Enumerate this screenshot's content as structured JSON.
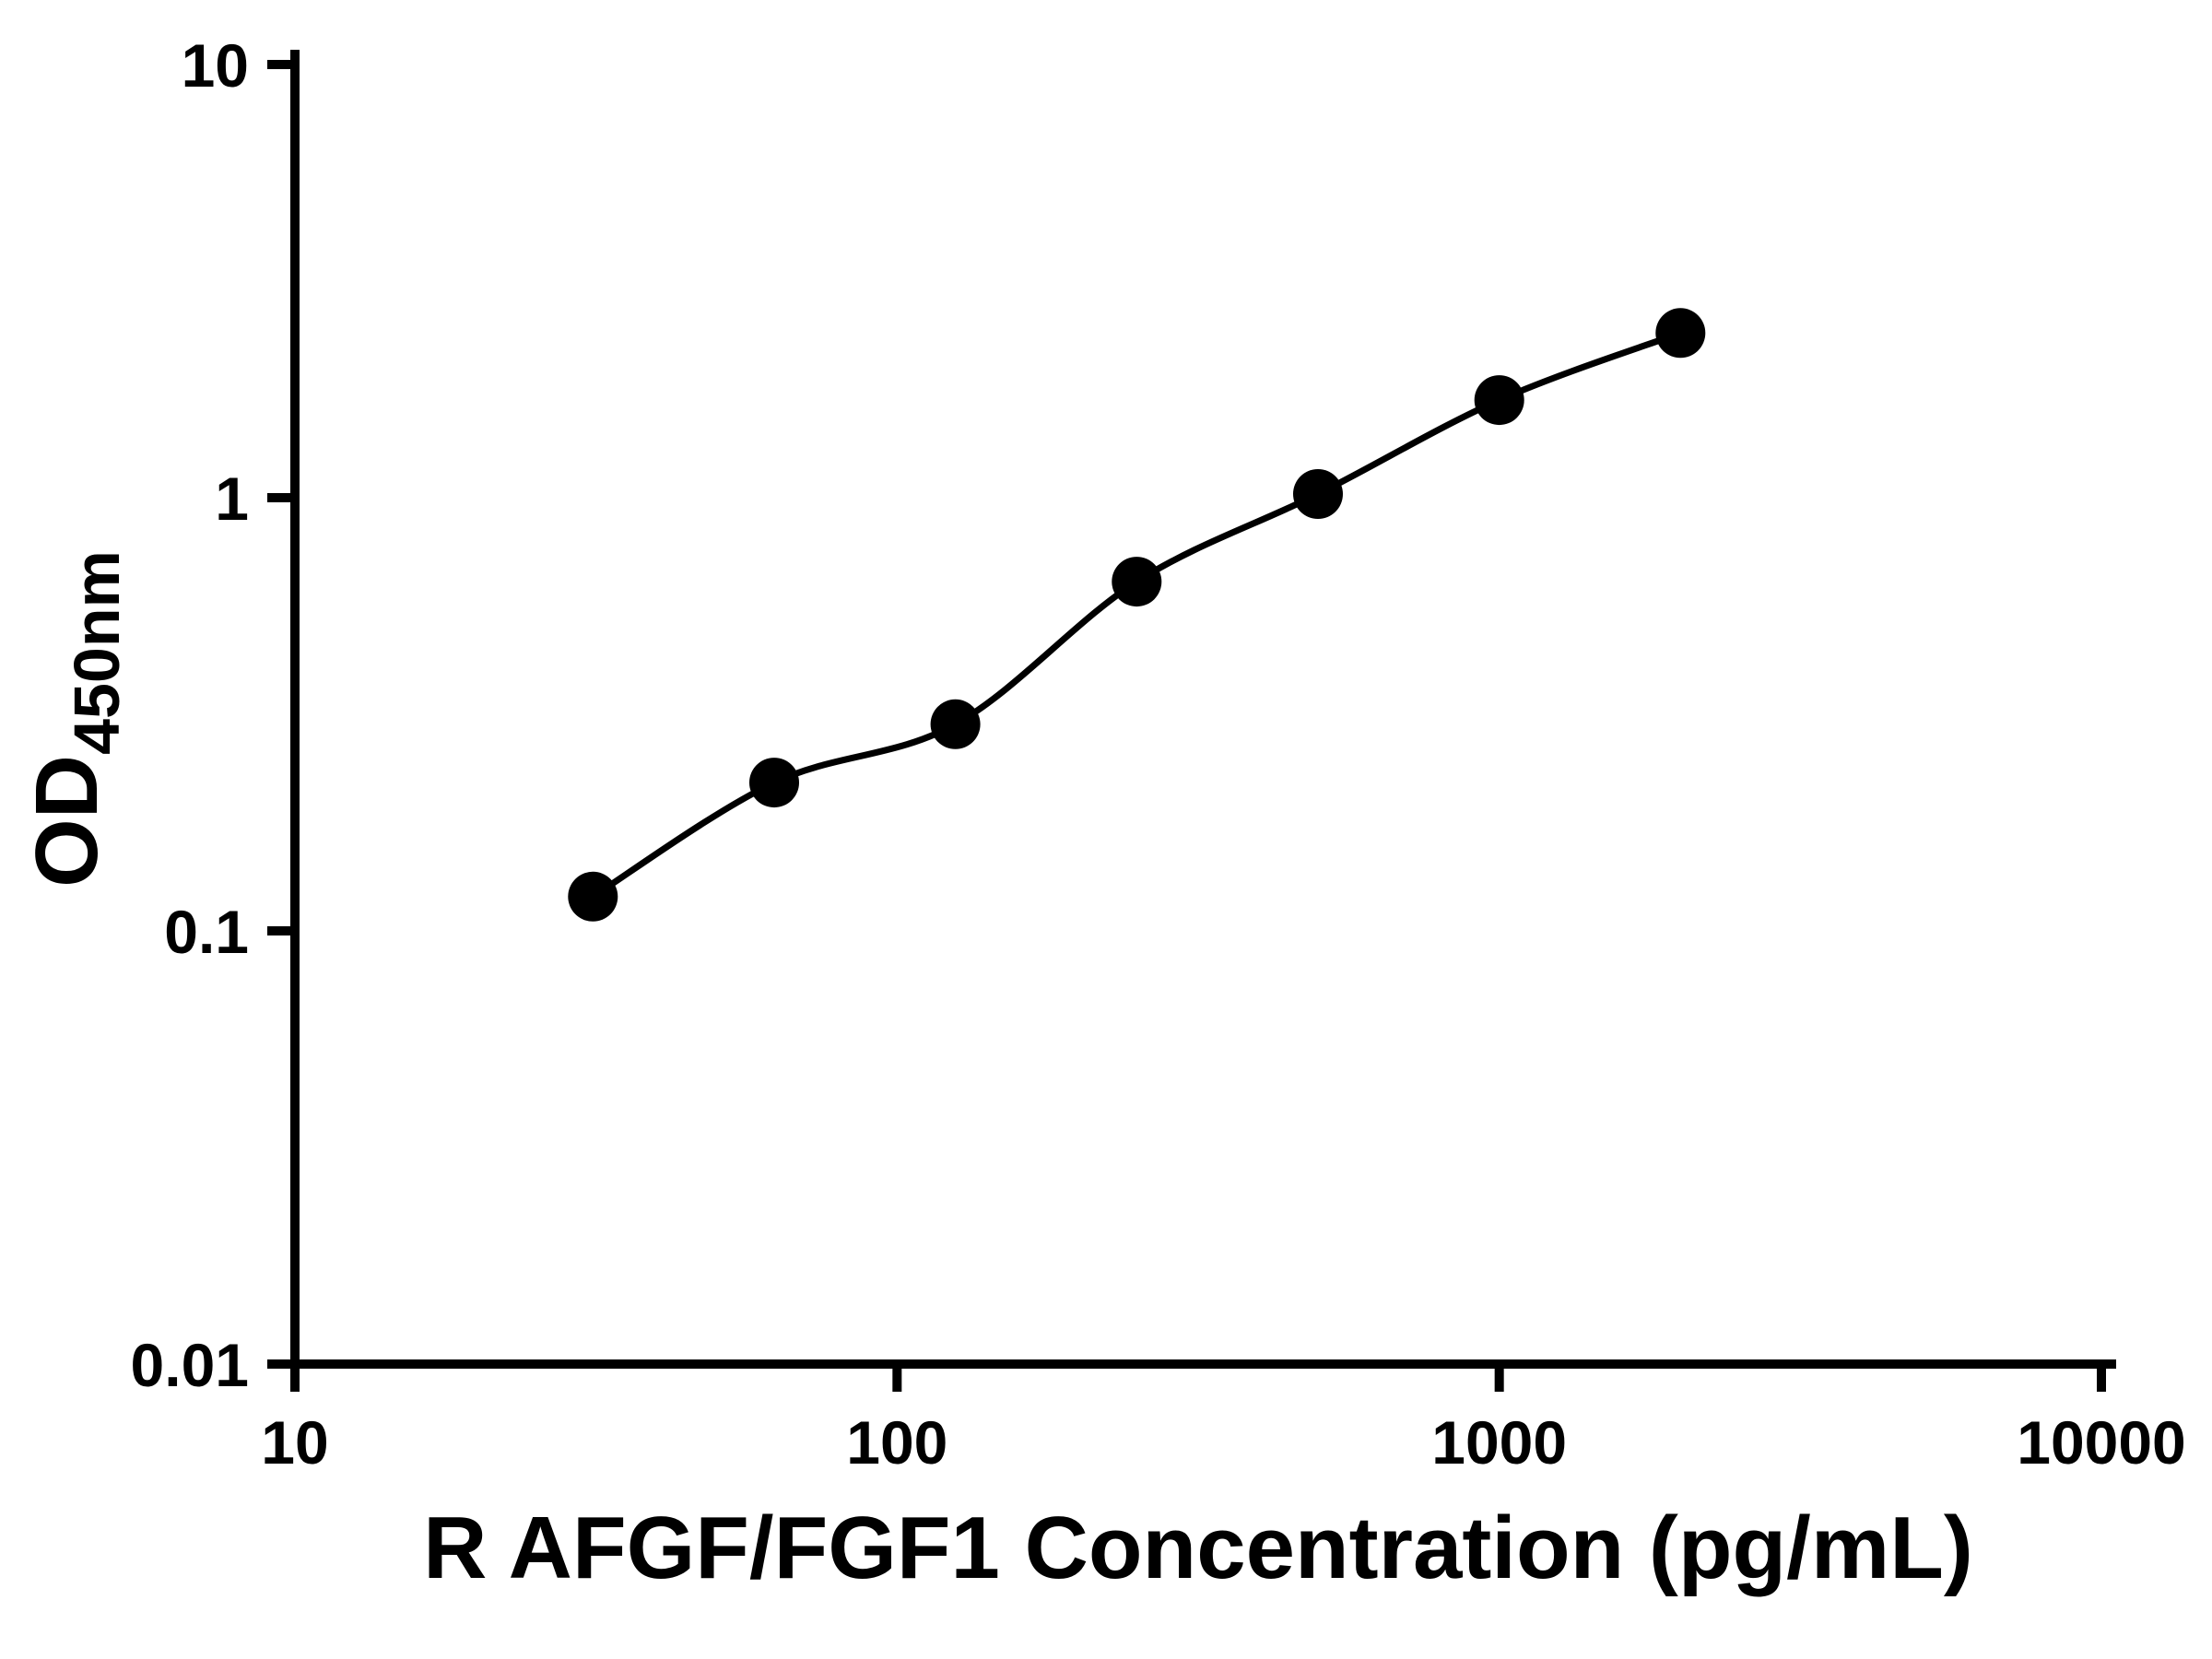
{
  "chart_data": {
    "type": "scatter",
    "title": "",
    "xlabel": "R AFGF/FGF1 Concentration (pg/mL)",
    "ylabel": "OD",
    "ylabel_sub": "450nm",
    "x_scale": "log",
    "y_scale": "log",
    "xlim": [
      10,
      10000
    ],
    "ylim": [
      0.01,
      10
    ],
    "x_ticks": [
      10,
      100,
      1000,
      10000
    ],
    "x_tick_labels": [
      "10",
      "100",
      "1000",
      "10000"
    ],
    "y_ticks": [
      0.01,
      0.1,
      1,
      10
    ],
    "y_tick_labels": [
      "0.01",
      "0.1",
      "1",
      "10"
    ],
    "grid": false,
    "legend": false,
    "series": [
      {
        "x": [
          31.25,
          62.5,
          125,
          250,
          500,
          1000,
          2000
        ],
        "y": [
          0.12,
          0.22,
          0.3,
          0.64,
          1.02,
          1.68,
          2.4
        ],
        "marker": "circle",
        "line": "smooth",
        "color": "#000000"
      }
    ]
  },
  "colors": {
    "axis": "#000000",
    "marker": "#000000",
    "line": "#000000",
    "background": "#ffffff"
  }
}
